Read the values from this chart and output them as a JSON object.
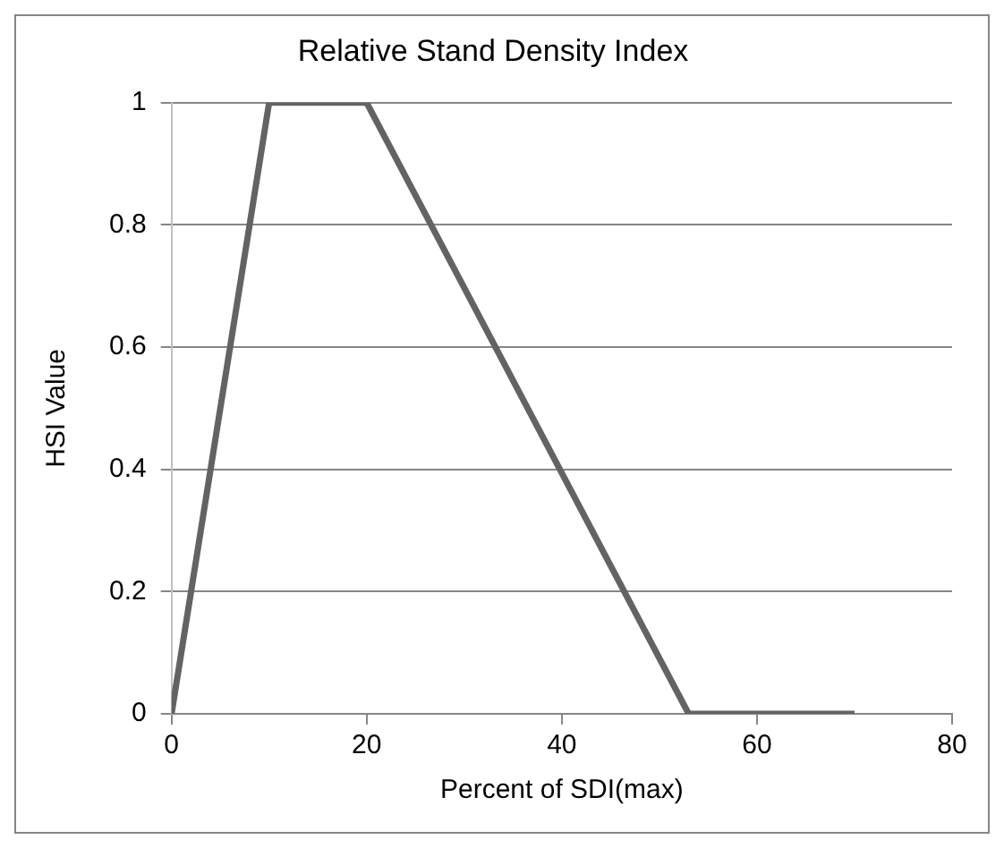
{
  "chart_data": {
    "type": "line",
    "title": "Relative Stand Density Index",
    "xlabel": "Percent of SDI(max)",
    "ylabel": "HSI Value",
    "x": [
      0,
      10,
      20,
      53,
      70
    ],
    "series": [
      {
        "color": "#636363",
        "values": [
          0,
          1,
          1,
          0,
          0
        ]
      }
    ],
    "xlim": [
      0,
      80
    ],
    "xticks": [
      0,
      20,
      40,
      60,
      80
    ],
    "ylim": [
      0,
      1
    ],
    "yticks": [
      0,
      0.2,
      0.4,
      0.6,
      0.8,
      1
    ],
    "grid": "y",
    "legend": false,
    "marker": "none",
    "line_style": "solid"
  }
}
